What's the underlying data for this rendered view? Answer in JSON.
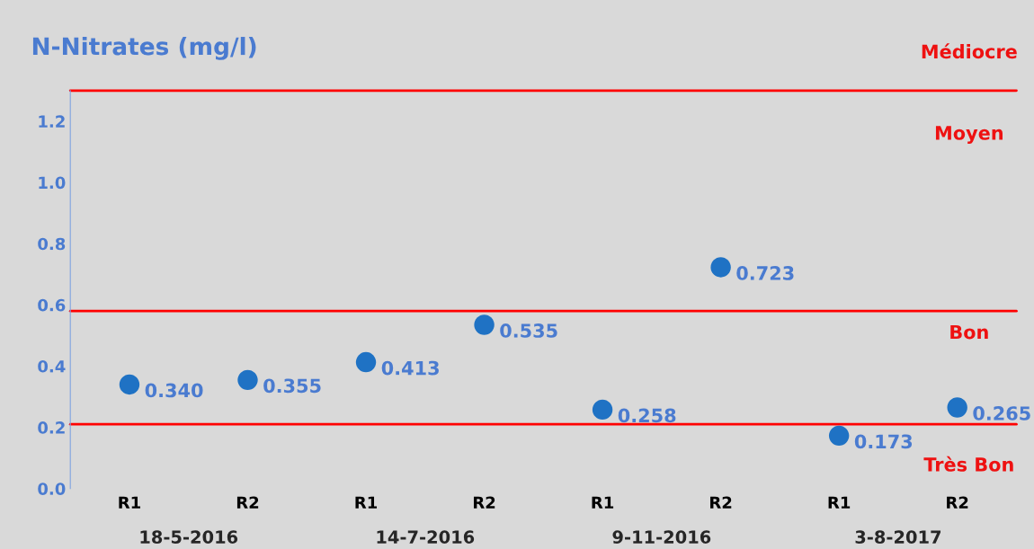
{
  "chart_data": {
    "type": "scatter",
    "title": "N-Nitrates (mg/l)",
    "categories": [
      "R1",
      "R2",
      "R1",
      "R2",
      "R1",
      "R2",
      "R1",
      "R2"
    ],
    "series": [
      {
        "color": "#1f72c4",
        "values": [
          0.34,
          0.355,
          0.413,
          0.535,
          0.258,
          0.723,
          0.173,
          0.265
        ],
        "value_labels": [
          "0.340",
          "0.355",
          "0.413",
          "0.535",
          "0.258",
          "0.723",
          "0.173",
          "0.265"
        ]
      }
    ],
    "marker": "circle",
    "ylim": [
      0,
      1.3
    ],
    "yticks": [
      {
        "value": 0,
        "label": "0.0"
      },
      {
        "value": 0.2,
        "label": "0.2"
      },
      {
        "value": 0.4,
        "label": "0.4"
      },
      {
        "value": 0.6,
        "label": "0.6"
      },
      {
        "value": 0.8,
        "label": "0.8"
      },
      {
        "value": 1.0,
        "label": "1.0"
      },
      {
        "value": 1.2,
        "label": "1.2"
      }
    ],
    "grid": false,
    "legend": false,
    "ref_lines": [
      {
        "axis": "y",
        "value": 1.3,
        "color": "#ff0000"
      },
      {
        "axis": "y",
        "value": 0.58,
        "color": "#ff0000"
      },
      {
        "axis": "y",
        "value": 0.21,
        "color": "#ff0000"
      }
    ],
    "annotations": [
      "Médiocre",
      "Moyen",
      "Bon",
      "Très Bon",
      "18-5-2016",
      "14-7-2016",
      "9-11-2016",
      "3-8-2017"
    ]
  }
}
